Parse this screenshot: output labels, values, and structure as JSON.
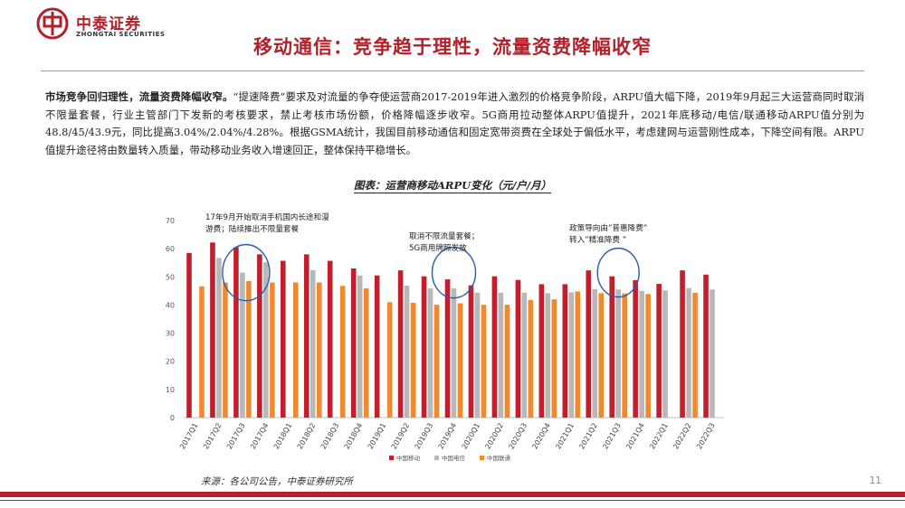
{
  "header": {
    "logo_cn": "中泰证券",
    "logo_en": "ZHONGTAI SECURITIES",
    "title": "移动通信：竞争趋于理性，流量资费降幅收窄"
  },
  "body": {
    "lead": "市场竞争回归理性，流量资费降幅收窄。",
    "text": "“提速降费”要求及对流量的争夺使运营商2017-2019年进入激烈的价格竞争阶段，ARPU值大幅下降，2019年9月起三大运营商同时取消不限量套餐，行业主管部门下发新的考核要求，禁止考核市场份额，价格降幅逐步收窄。5G商用拉动整体ARPU值提升，2021年底移动/电信/联通移动ARPU值分别为48.8/45/43.9元，同比提高3.04%/2.04%/4.28%。根据GSMA统计，我国目前移动通信和固定宽带资费在全球处于偏低水平，考虑建网与运营刚性成本，下降空间有限。ARPU值提升途径将由数量转入质量，带动移动业务收入增速回正，整体保持平稳增长。"
  },
  "chart_title": "图表：运营商移动ARPU变化（元/户/月）",
  "chart_data": {
    "type": "bar",
    "categories": [
      "2017Q1",
      "2017Q2",
      "2017Q3",
      "2017Q4",
      "2018Q1",
      "2018Q2",
      "2018Q3",
      "2018Q4",
      "2019Q1",
      "2019Q2",
      "2019Q3",
      "2019Q4",
      "2020Q1",
      "2020Q2",
      "2020Q3",
      "2020Q4",
      "2021Q1",
      "2021Q2",
      "2021Q3",
      "2021Q4",
      "2022Q1",
      "2022Q2",
      "2022Q3"
    ],
    "series": [
      {
        "name": "中国移动",
        "color": "#c0202e",
        "values": [
          58.5,
          62.2,
          60.5,
          58.0,
          55.7,
          58.0,
          55.7,
          53.0,
          50.5,
          52.3,
          50.2,
          49.1,
          47.0,
          50.2,
          48.9,
          47.4,
          47.4,
          52.3,
          50.2,
          48.8,
          47.5,
          52.3,
          50.8
        ]
      },
      {
        "name": "中国电信",
        "color": "#b8b8b8",
        "values": [
          null,
          56.7,
          51.5,
          55.2,
          null,
          52.4,
          null,
          50.5,
          null,
          46.9,
          45.9,
          45.9,
          44.4,
          44.4,
          44.4,
          44.2,
          44.5,
          45.6,
          45.5,
          45.0,
          45.2,
          46.0,
          45.5
        ]
      },
      {
        "name": "中国联通",
        "color": "#f08a30",
        "values": [
          46.6,
          48.0,
          48.5,
          48.0,
          48.0,
          48.0,
          46.8,
          45.9,
          41.0,
          40.8,
          40.1,
          40.6,
          40.1,
          40.1,
          41.8,
          42.0,
          44.8,
          44.2,
          44.1,
          43.9,
          null,
          44.3,
          null
        ]
      }
    ],
    "ylim": [
      0,
      70
    ],
    "yticks": [
      0,
      10,
      20,
      30,
      40,
      50,
      60,
      70
    ],
    "legend_position": "bottom",
    "annotations": [
      {
        "lines": [
          "17年9月开始取消手机国内长途和漫",
          "游费；陆续推出不限量套餐"
        ],
        "circle_category": "2017Q3"
      },
      {
        "lines": [
          "取消不限流量套餐；",
          "5G商用牌照发放"
        ],
        "circle_category": "2019Q4"
      },
      {
        "lines": [
          "政策导向由”普惠降费”",
          "转入”精准降费 ”"
        ],
        "circle_category": "2021Q3"
      }
    ]
  },
  "footer": {
    "source": "来源：各公司公告，中泰证券研究所",
    "page": "11"
  }
}
